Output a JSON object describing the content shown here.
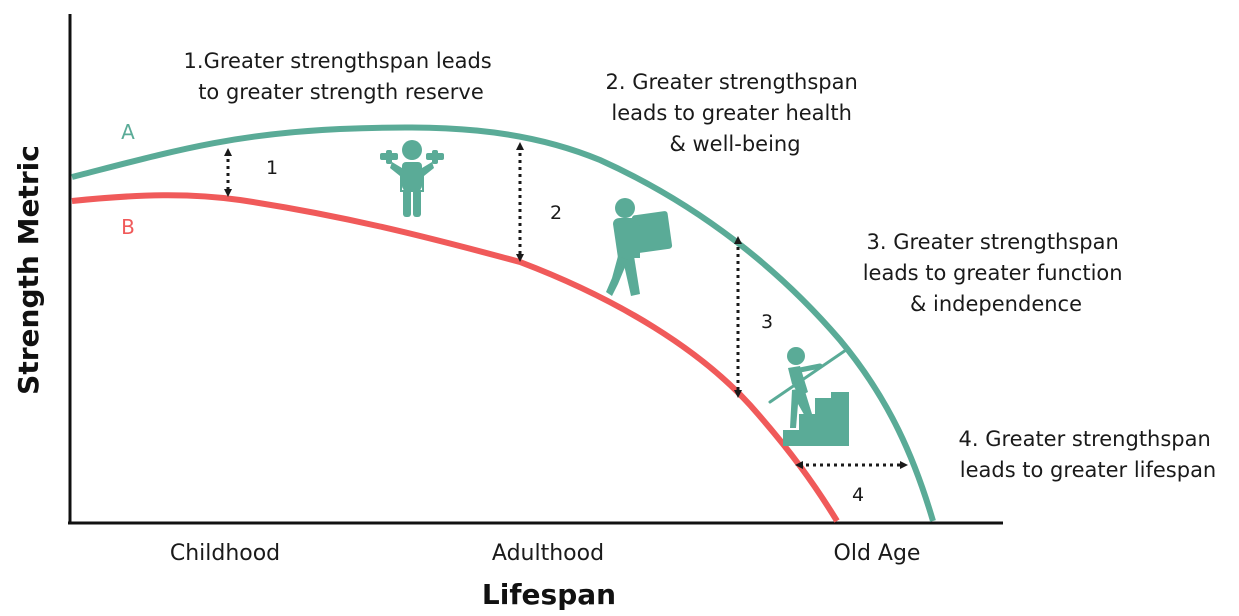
{
  "axes": {
    "y_title": "Strength Metric",
    "x_title": "Lifespan",
    "x_ticks": [
      "Childhood",
      "Adulthood",
      "Old Age"
    ]
  },
  "curves": {
    "a": {
      "label": "A",
      "color": "#5aab97"
    },
    "b": {
      "label": "B",
      "color": "#f05a5a"
    }
  },
  "icon_color": "#5aab97",
  "annotations": [
    {
      "number": "1",
      "lines": [
        "1.Greater strengthspan leads",
        "to greater strength reserve"
      ]
    },
    {
      "number": "2",
      "lines": [
        "2. Greater strengthspan",
        "leads to greater health",
        "& well-being"
      ]
    },
    {
      "number": "3",
      "lines": [
        "3. Greater strengthspan",
        "leads to greater function",
        "& independence"
      ]
    },
    {
      "number": "4",
      "lines": [
        "4. Greater strengthspan",
        "leads to greater lifespan"
      ]
    }
  ],
  "icons": [
    "weightlifter-icon",
    "person-carrying-box-icon",
    "person-climbing-stairs-icon"
  ]
}
